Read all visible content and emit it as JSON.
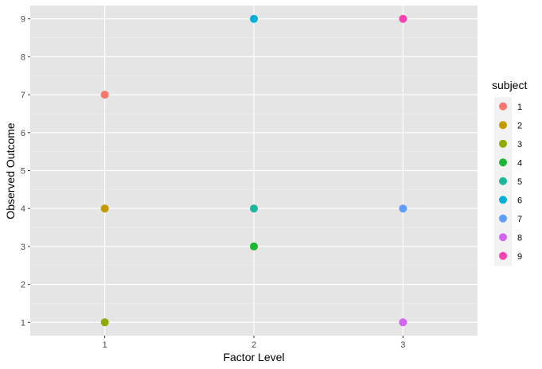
{
  "chart_data": {
    "type": "scatter",
    "xlabel": "Factor Level",
    "ylabel": "Observed Outcome",
    "x_categories": [
      "1",
      "2",
      "3"
    ],
    "y_ticks": [
      1,
      2,
      3,
      4,
      5,
      6,
      7,
      8,
      9
    ],
    "xlim": [
      0.5,
      3.5
    ],
    "ylim": [
      0.65,
      9.35
    ],
    "grid": true,
    "legend": {
      "title": "subject",
      "placement": "right"
    },
    "points": [
      {
        "subject": "1",
        "x": 1,
        "y": 7,
        "color": "#F8766D"
      },
      {
        "subject": "2",
        "x": 1,
        "y": 4,
        "color": "#C49A00"
      },
      {
        "subject": "3",
        "x": 1,
        "y": 1,
        "color": "#8DAB00"
      },
      {
        "subject": "4",
        "x": 2,
        "y": 3,
        "color": "#1FB634"
      },
      {
        "subject": "5",
        "x": 2,
        "y": 4,
        "color": "#1EB79B"
      },
      {
        "subject": "6",
        "x": 2,
        "y": 9,
        "color": "#00AFD8"
      },
      {
        "subject": "7",
        "x": 3,
        "y": 4,
        "color": "#619CFF"
      },
      {
        "subject": "8",
        "x": 3,
        "y": 1,
        "color": "#D265F2"
      },
      {
        "subject": "9",
        "x": 3,
        "y": 9,
        "color": "#F743AF"
      }
    ]
  },
  "colors": {
    "panel_background": "#E5E5E5",
    "grid_major": "#FFFFFF",
    "grid_minor": "#F0F0F0",
    "legend_key_background": "#F2F2F2"
  }
}
